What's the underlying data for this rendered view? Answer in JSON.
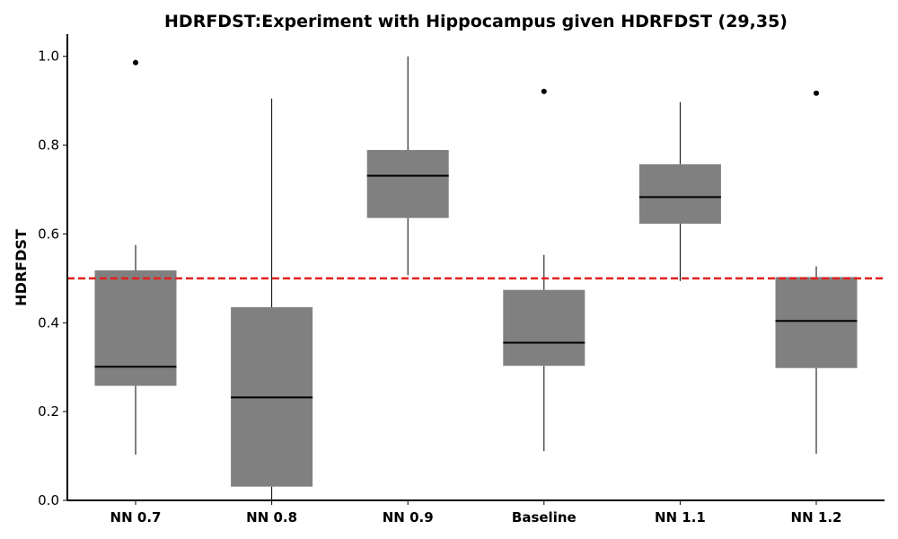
{
  "chart_data": {
    "type": "box",
    "title": "HDRFDST:Experiment with Hippocampus given HDRFDST (29,35)",
    "xlabel": "",
    "ylabel": "HDRFDST",
    "ylim": [
      0.0,
      1.05
    ],
    "yticks": [
      "0.0",
      "0.2",
      "0.4",
      "0.6",
      "0.8",
      "1.0"
    ],
    "ytick_values": [
      0.0,
      0.2,
      0.4,
      0.6,
      0.8,
      1.0
    ],
    "categories": [
      "NN 0.7",
      "NN 0.8",
      "NN 0.9",
      "Baseline",
      "NN 1.1",
      "NN 1.2"
    ],
    "boxes": [
      {
        "whisker_low": 0.103,
        "q1": 0.258,
        "median": 0.301,
        "q3": 0.518,
        "whisker_high": 0.575,
        "outliers": [
          0.986
        ]
      },
      {
        "whisker_low": 0.0,
        "q1": 0.031,
        "median": 0.232,
        "q3": 0.435,
        "whisker_high": 0.905,
        "outliers": []
      },
      {
        "whisker_low": 0.507,
        "q1": 0.636,
        "median": 0.731,
        "q3": 0.789,
        "whisker_high": 1.0,
        "outliers": []
      },
      {
        "whisker_low": 0.111,
        "q1": 0.303,
        "median": 0.355,
        "q3": 0.474,
        "whisker_high": 0.553,
        "outliers": [
          0.921
        ]
      },
      {
        "whisker_low": 0.494,
        "q1": 0.623,
        "median": 0.683,
        "q3": 0.757,
        "whisker_high": 0.897,
        "outliers": []
      },
      {
        "whisker_low": 0.105,
        "q1": 0.298,
        "median": 0.404,
        "q3": 0.503,
        "whisker_high": 0.527,
        "outliers": [
          0.917
        ]
      }
    ],
    "reference_line": {
      "y": 0.5,
      "color": "#e3211c",
      "style": "dashed"
    },
    "box_color": "#808080",
    "median_color": "#000000",
    "grid": false,
    "legend": "none"
  }
}
